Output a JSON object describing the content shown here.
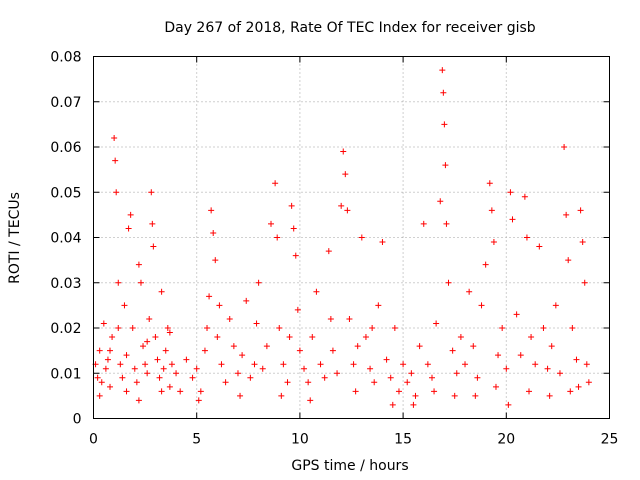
{
  "chart_data": {
    "type": "scatter",
    "title": "Day 267 of 2018, Rate Of TEC Index for receiver gisb",
    "xlabel": "GPS time / hours",
    "ylabel": "ROTI / TECUs",
    "xlim": [
      0,
      25
    ],
    "ylim": [
      0,
      0.08
    ],
    "xticks": [
      0,
      5,
      10,
      15,
      20,
      25
    ],
    "xtick_labels": [
      "0",
      "5",
      "10",
      "15",
      "20",
      "25"
    ],
    "yticks": [
      0,
      0.01,
      0.02,
      0.03,
      0.04,
      0.05,
      0.06,
      0.07,
      0.08
    ],
    "ytick_labels": [
      "0",
      "0.01",
      "0.02",
      "0.03",
      "0.04",
      "0.05",
      "0.06",
      "0.07",
      "0.08"
    ],
    "grid": true,
    "marker": "+",
    "color": "#ff0000",
    "series": [
      {
        "name": "ROTI",
        "points": [
          [
            0.1,
            0.012
          ],
          [
            0.2,
            0.009
          ],
          [
            0.3,
            0.015
          ],
          [
            0.4,
            0.008
          ],
          [
            0.5,
            0.021
          ],
          [
            0.6,
            0.011
          ],
          [
            0.7,
            0.013
          ],
          [
            0.8,
            0.007
          ],
          [
            0.9,
            0.018
          ],
          [
            1.0,
            0.062
          ],
          [
            1.05,
            0.057
          ],
          [
            1.1,
            0.05
          ],
          [
            1.2,
            0.03
          ],
          [
            1.3,
            0.012
          ],
          [
            1.4,
            0.009
          ],
          [
            1.5,
            0.025
          ],
          [
            1.6,
            0.014
          ],
          [
            1.7,
            0.042
          ],
          [
            1.8,
            0.045
          ],
          [
            1.9,
            0.02
          ],
          [
            2.0,
            0.011
          ],
          [
            2.1,
            0.008
          ],
          [
            2.2,
            0.034
          ],
          [
            2.3,
            0.03
          ],
          [
            2.4,
            0.016
          ],
          [
            2.5,
            0.012
          ],
          [
            2.6,
            0.01
          ],
          [
            2.7,
            0.022
          ],
          [
            2.8,
            0.05
          ],
          [
            2.85,
            0.043
          ],
          [
            2.9,
            0.038
          ],
          [
            3.0,
            0.018
          ],
          [
            3.1,
            0.013
          ],
          [
            3.2,
            0.009
          ],
          [
            3.3,
            0.028
          ],
          [
            3.4,
            0.011
          ],
          [
            3.5,
            0.015
          ],
          [
            3.6,
            0.02
          ],
          [
            3.7,
            0.007
          ],
          [
            3.8,
            0.012
          ],
          [
            4.0,
            0.01
          ],
          [
            4.2,
            0.006
          ],
          [
            0.3,
            0.005
          ],
          [
            0.8,
            0.015
          ],
          [
            1.2,
            0.02
          ],
          [
            1.6,
            0.006
          ],
          [
            2.2,
            0.004
          ],
          [
            2.6,
            0.017
          ],
          [
            3.3,
            0.006
          ],
          [
            3.7,
            0.019
          ],
          [
            4.5,
            0.013
          ],
          [
            4.8,
            0.009
          ],
          [
            5.0,
            0.011
          ],
          [
            5.2,
            0.006
          ],
          [
            5.4,
            0.015
          ],
          [
            5.5,
            0.02
          ],
          [
            5.6,
            0.027
          ],
          [
            5.7,
            0.046
          ],
          [
            5.8,
            0.041
          ],
          [
            5.9,
            0.035
          ],
          [
            6.0,
            0.018
          ],
          [
            6.2,
            0.012
          ],
          [
            6.4,
            0.008
          ],
          [
            6.6,
            0.022
          ],
          [
            6.8,
            0.016
          ],
          [
            7.0,
            0.01
          ],
          [
            7.2,
            0.014
          ],
          [
            7.4,
            0.026
          ],
          [
            7.6,
            0.009
          ],
          [
            7.8,
            0.012
          ],
          [
            8.0,
            0.03
          ],
          [
            8.2,
            0.011
          ],
          [
            8.4,
            0.016
          ],
          [
            8.6,
            0.043
          ],
          [
            8.8,
            0.052
          ],
          [
            8.9,
            0.04
          ],
          [
            9.0,
            0.02
          ],
          [
            9.2,
            0.012
          ],
          [
            9.4,
            0.008
          ],
          [
            9.6,
            0.047
          ],
          [
            9.7,
            0.042
          ],
          [
            9.8,
            0.036
          ],
          [
            9.9,
            0.024
          ],
          [
            10.0,
            0.015
          ],
          [
            5.1,
            0.004
          ],
          [
            6.1,
            0.025
          ],
          [
            7.1,
            0.005
          ],
          [
            7.9,
            0.021
          ],
          [
            9.1,
            0.005
          ],
          [
            9.5,
            0.018
          ],
          [
            10.2,
            0.011
          ],
          [
            10.4,
            0.008
          ],
          [
            10.6,
            0.018
          ],
          [
            10.8,
            0.028
          ],
          [
            11.0,
            0.012
          ],
          [
            11.2,
            0.009
          ],
          [
            11.4,
            0.037
          ],
          [
            11.6,
            0.015
          ],
          [
            11.8,
            0.01
          ],
          [
            12.0,
            0.047
          ],
          [
            12.1,
            0.059
          ],
          [
            12.2,
            0.054
          ],
          [
            12.3,
            0.046
          ],
          [
            12.4,
            0.022
          ],
          [
            12.6,
            0.012
          ],
          [
            12.8,
            0.016
          ],
          [
            13.0,
            0.04
          ],
          [
            13.2,
            0.018
          ],
          [
            13.4,
            0.011
          ],
          [
            13.6,
            0.008
          ],
          [
            13.8,
            0.025
          ],
          [
            14.0,
            0.039
          ],
          [
            14.2,
            0.013
          ],
          [
            14.4,
            0.009
          ],
          [
            14.6,
            0.02
          ],
          [
            14.8,
            0.006
          ],
          [
            15.0,
            0.012
          ],
          [
            10.5,
            0.004
          ],
          [
            11.5,
            0.022
          ],
          [
            12.7,
            0.006
          ],
          [
            13.5,
            0.02
          ],
          [
            14.5,
            0.003
          ],
          [
            15.2,
            0.008
          ],
          [
            15.4,
            0.01
          ],
          [
            15.6,
            0.005
          ],
          [
            15.8,
            0.016
          ],
          [
            16.0,
            0.043
          ],
          [
            16.2,
            0.012
          ],
          [
            16.4,
            0.009
          ],
          [
            16.6,
            0.021
          ],
          [
            16.8,
            0.048
          ],
          [
            16.9,
            0.077
          ],
          [
            16.95,
            0.072
          ],
          [
            17.0,
            0.065
          ],
          [
            17.05,
            0.056
          ],
          [
            17.1,
            0.043
          ],
          [
            17.2,
            0.03
          ],
          [
            17.4,
            0.015
          ],
          [
            17.6,
            0.01
          ],
          [
            17.8,
            0.018
          ],
          [
            18.0,
            0.012
          ],
          [
            18.2,
            0.028
          ],
          [
            18.4,
            0.016
          ],
          [
            18.6,
            0.009
          ],
          [
            18.8,
            0.025
          ],
          [
            19.0,
            0.034
          ],
          [
            19.2,
            0.052
          ],
          [
            19.3,
            0.046
          ],
          [
            19.4,
            0.039
          ],
          [
            19.6,
            0.014
          ],
          [
            19.8,
            0.02
          ],
          [
            20.0,
            0.011
          ],
          [
            20.2,
            0.05
          ],
          [
            20.3,
            0.044
          ],
          [
            20.5,
            0.023
          ],
          [
            20.7,
            0.014
          ],
          [
            20.9,
            0.049
          ],
          [
            21.0,
            0.04
          ],
          [
            21.2,
            0.018
          ],
          [
            21.4,
            0.012
          ],
          [
            21.6,
            0.038
          ],
          [
            21.8,
            0.02
          ],
          [
            22.0,
            0.011
          ],
          [
            22.2,
            0.016
          ],
          [
            22.4,
            0.025
          ],
          [
            22.6,
            0.01
          ],
          [
            22.8,
            0.06
          ],
          [
            22.9,
            0.045
          ],
          [
            23.0,
            0.035
          ],
          [
            23.2,
            0.02
          ],
          [
            23.4,
            0.013
          ],
          [
            23.6,
            0.046
          ],
          [
            23.7,
            0.039
          ],
          [
            23.8,
            0.03
          ],
          [
            23.9,
            0.012
          ],
          [
            24.0,
            0.008
          ],
          [
            15.5,
            0.003
          ],
          [
            16.5,
            0.006
          ],
          [
            17.5,
            0.005
          ],
          [
            18.5,
            0.005
          ],
          [
            19.5,
            0.007
          ],
          [
            20.1,
            0.003
          ],
          [
            21.1,
            0.006
          ],
          [
            22.1,
            0.005
          ],
          [
            23.1,
            0.006
          ],
          [
            23.5,
            0.007
          ]
        ]
      }
    ]
  }
}
